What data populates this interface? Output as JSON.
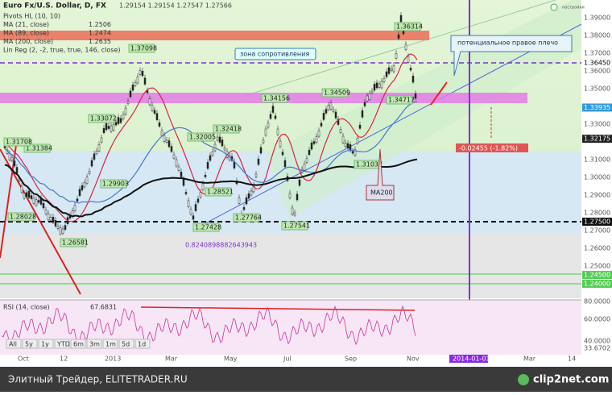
{
  "header": {
    "symbol": "Euro Fx/U.S. Dollar, D, FX",
    "ohlc": "1.29154  1.29154  1.27547  1.27566",
    "settings": "настройки"
  },
  "indicators": [
    {
      "label": "Pivots HL (10, 10)"
    },
    {
      "label": "MA (21, close)",
      "value": "1.2506"
    },
    {
      "label": "MA (89, close)",
      "value": "1.2474"
    },
    {
      "label": "MA (200, close)",
      "value": "1.2635"
    },
    {
      "label": "Lin Reg (2, -2, true, true, 146, close)"
    }
  ],
  "annotations": {
    "resistance": "зона сопротивления",
    "shoulder": "потенциальное правое плечо",
    "ma200": "MA200",
    "change": "-0.02455 (-1.82%)",
    "ratio": "0.8240898882643943"
  },
  "pivots": [
    "1.37098",
    "1.36314",
    "1.34156",
    "1.34509",
    "1.34717",
    "1.33072",
    "1.32418",
    "1.32005",
    "1.31384",
    "1.31708",
    "1.31037",
    "1.29903",
    "1.28521",
    "1.27764",
    "1.27428",
    "1.27541",
    "1.28028",
    "1.26581"
  ],
  "price_axis": [
    "1.39000",
    "1.38000",
    "1.37000",
    "1.36450",
    "1.36000",
    "1.35000",
    "1.33935",
    "1.33000",
    "1.32175",
    "1.31000",
    "1.30000",
    "1.29000",
    "1.28000",
    "1.27500",
    "1.27000",
    "1.26000",
    "1.25000",
    "1.24500",
    "1.24000"
  ],
  "rsi": {
    "label": "RSI (14, close)",
    "value": "67.6831",
    "axis": [
      "80.0000",
      "60.0000",
      "40.0000",
      "33.6702"
    ]
  },
  "range_buttons": [
    "All",
    "5y",
    "1y",
    "YTD",
    "6m",
    "3m",
    "1m",
    "5d",
    "1d"
  ],
  "time_axis": [
    "Oct",
    "12",
    "2013",
    "Mar",
    "May",
    "Jul",
    "Sep",
    "Nov",
    "2014-01-01",
    "Mar",
    "14"
  ],
  "footer": {
    "site": "Элитный Трейдер, ELITETRADER.RU",
    "logo": "clip2net.com"
  }
}
